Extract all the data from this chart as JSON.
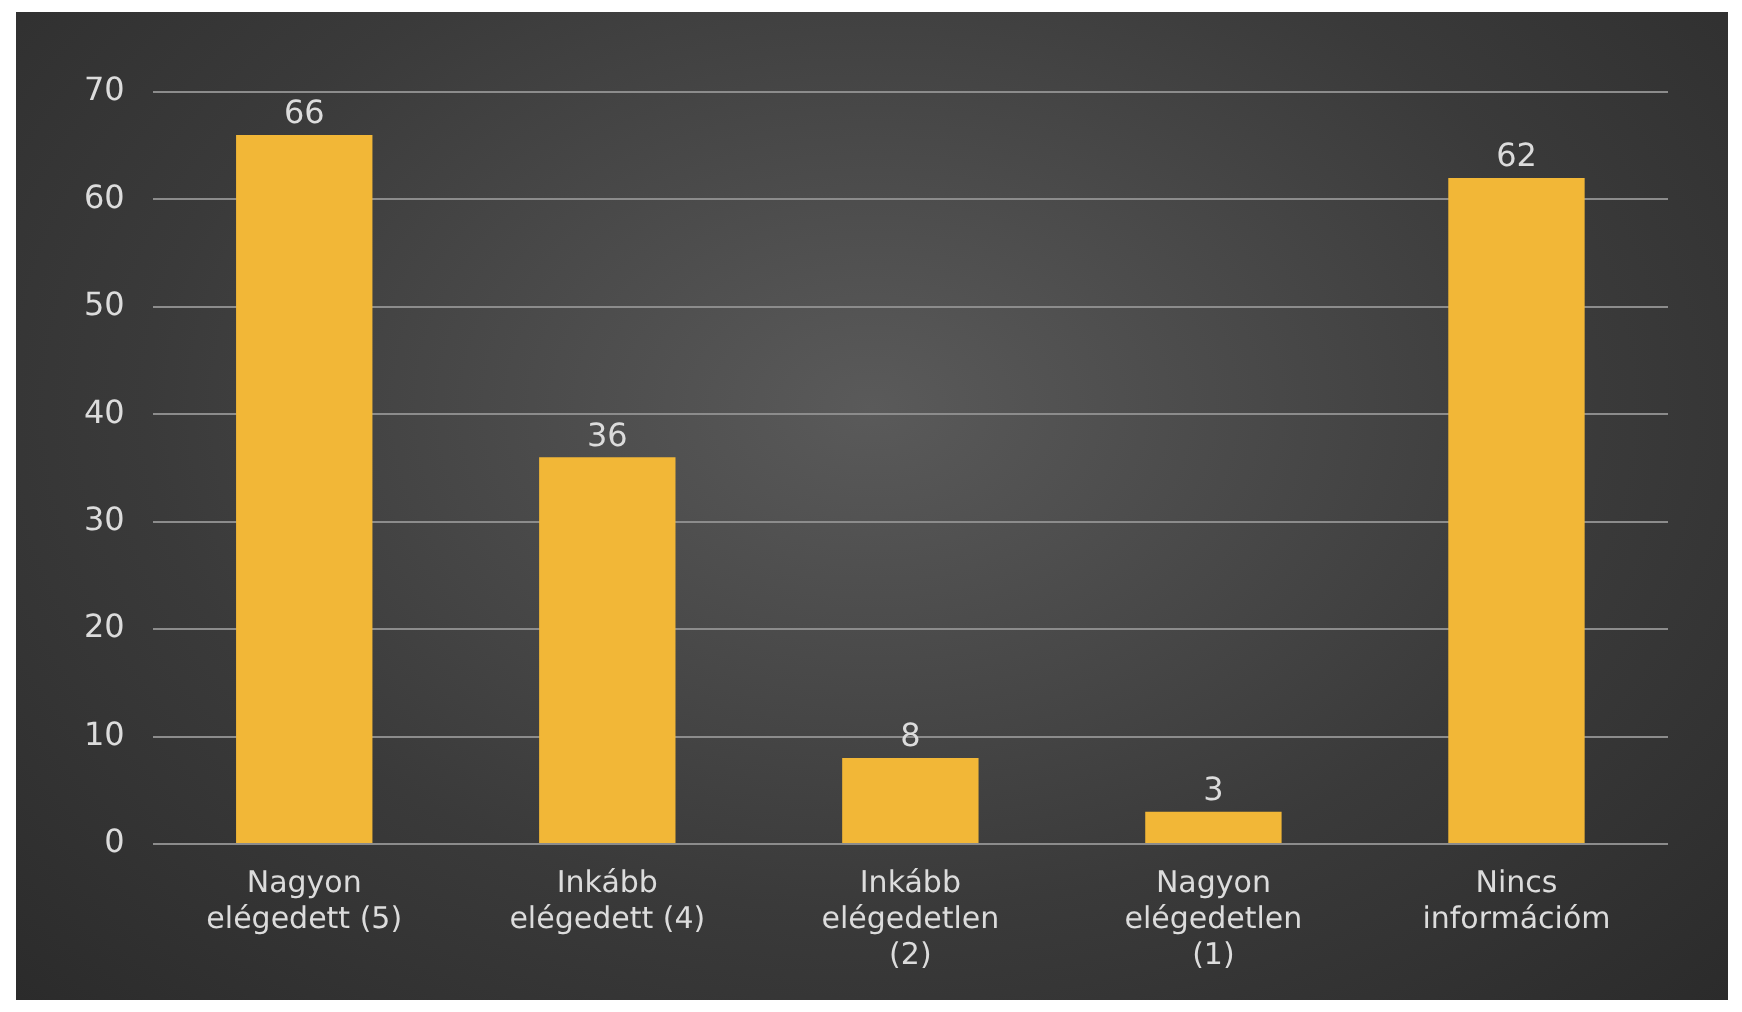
{
  "chart_data": {
    "type": "bar",
    "categories": [
      "Nagyon elégedett (5)",
      "Inkább elégedett (4)",
      "Inkább elégedetlen (2)",
      "Nagyon elégedetlen (1)",
      "Nincs információm"
    ],
    "values": [
      66,
      36,
      8,
      3,
      62
    ],
    "color": "#f2b737",
    "ylim": [
      0,
      70
    ],
    "yticks": [
      0,
      10,
      20,
      30,
      40,
      50,
      60,
      70
    ],
    "grid": "y",
    "data_labels": true,
    "legend": false
  }
}
